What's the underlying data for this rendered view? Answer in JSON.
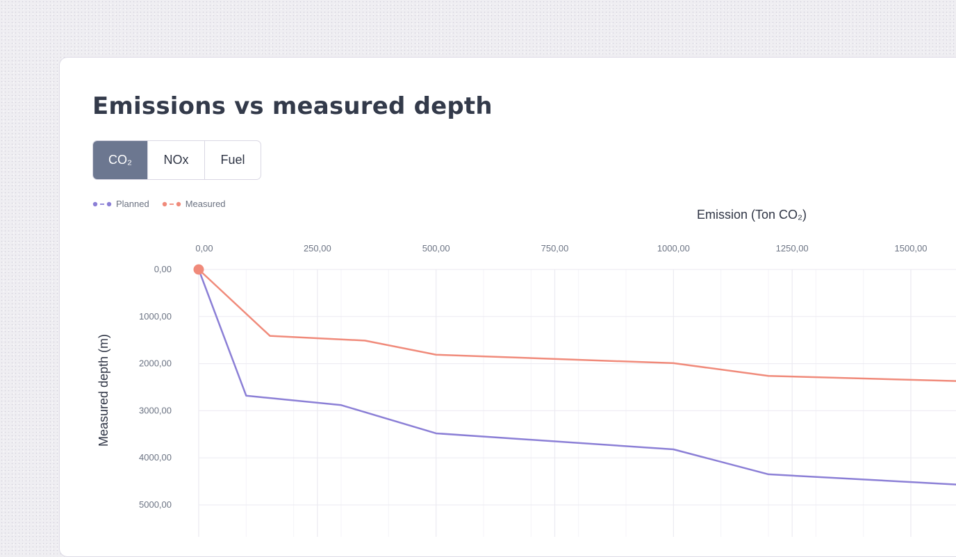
{
  "title": "Emissions vs measured depth",
  "tabs": [
    {
      "label": "CO₂",
      "active": true
    },
    {
      "label": "NOx",
      "active": false
    },
    {
      "label": "Fuel",
      "active": false
    }
  ],
  "legend": [
    {
      "label": "Planned",
      "color": "#8b7fd6"
    },
    {
      "label": "Measured",
      "color": "#f08a7a"
    }
  ],
  "chart_data": {
    "type": "line",
    "xlabel": "Emission (Ton CO₂)",
    "ylabel": "Measured depth (m)",
    "x_ticks": [
      "0,00",
      "250,00",
      "500,00",
      "750,00",
      "1000,00",
      "1250,00",
      "1500,00"
    ],
    "y_ticks": [
      "0,00",
      "1000,00",
      "2000,00",
      "3000,00",
      "4000,00",
      "5000,00"
    ],
    "xlim": [
      0,
      1600
    ],
    "ylim": [
      0,
      5500
    ],
    "y_inverted": true,
    "x_axis_position": "top",
    "grid": true,
    "series": [
      {
        "name": "Planned",
        "color": "#8b7fd6",
        "points": [
          [
            0,
            0
          ],
          [
            100,
            2680
          ],
          [
            300,
            2880
          ],
          [
            500,
            3480
          ],
          [
            1000,
            3820
          ],
          [
            1200,
            4350
          ],
          [
            1600,
            4570
          ]
        ]
      },
      {
        "name": "Measured",
        "color": "#f08a7a",
        "start_marker": true,
        "points": [
          [
            0,
            0
          ],
          [
            150,
            1410
          ],
          [
            350,
            1510
          ],
          [
            500,
            1810
          ],
          [
            1000,
            1990
          ],
          [
            1200,
            2260
          ],
          [
            1600,
            2370
          ]
        ]
      }
    ]
  }
}
